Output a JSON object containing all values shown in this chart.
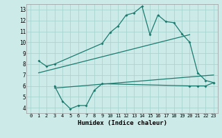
{
  "xlabel": "Humidex (Indice chaleur)",
  "bg_color": "#cceae8",
  "grid_color": "#aad4d0",
  "line_color": "#1a7a6e",
  "xlim": [
    -0.5,
    23.5
  ],
  "ylim": [
    3.5,
    13.5
  ],
  "xticks": [
    0,
    1,
    2,
    3,
    4,
    5,
    6,
    7,
    8,
    9,
    10,
    11,
    12,
    13,
    14,
    15,
    16,
    17,
    18,
    19,
    20,
    21,
    22,
    23
  ],
  "yticks": [
    4,
    5,
    6,
    7,
    8,
    9,
    10,
    11,
    12,
    13
  ],
  "line1_x": [
    1,
    2,
    3,
    9,
    10,
    11,
    12,
    13,
    14,
    15,
    16,
    17,
    18,
    19,
    20,
    21,
    22,
    23
  ],
  "line1_y": [
    8.3,
    7.8,
    8.0,
    9.9,
    10.9,
    11.5,
    12.5,
    12.7,
    13.3,
    10.7,
    12.5,
    11.9,
    11.8,
    10.8,
    10.0,
    7.2,
    6.5,
    6.3
  ],
  "line2_x": [
    3,
    4,
    5,
    6,
    7,
    8,
    9,
    20,
    21,
    22,
    23
  ],
  "line2_y": [
    6.0,
    4.6,
    3.9,
    4.2,
    4.2,
    5.6,
    6.2,
    6.0,
    6.0,
    6.0,
    6.3
  ],
  "trend1_x": [
    1,
    20
  ],
  "trend1_y": [
    7.2,
    10.7
  ],
  "trend2_x": [
    3,
    23
  ],
  "trend2_y": [
    5.8,
    7.0
  ]
}
